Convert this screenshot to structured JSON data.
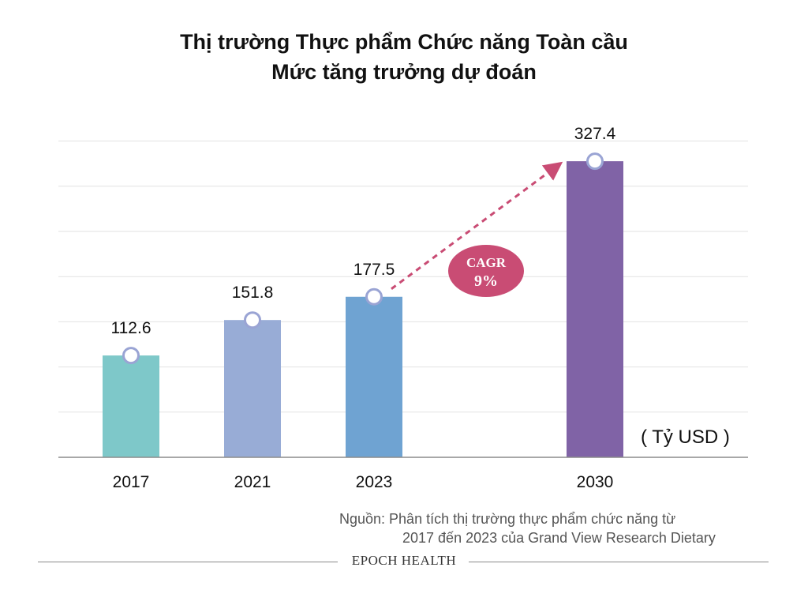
{
  "chart_data": {
    "type": "bar",
    "title_line1": "Thị trường Thực phẩm Chức năng Toàn cầu",
    "title_line2": "Mức tăng trưởng dự đoán",
    "categories": [
      "2017",
      "2021",
      "2023",
      "2030"
    ],
    "values": [
      112.6,
      151.8,
      177.5,
      327.4
    ],
    "value_labels": [
      "112.6",
      "151.8",
      "177.5",
      "327.4"
    ],
    "bar_colors": [
      "#7ec8c9",
      "#98acd6",
      "#6fa3d2",
      "#8063a6"
    ],
    "unit_label": "( Tỷ USD )",
    "ylim": [
      0,
      350
    ],
    "grid": true,
    "annotation": {
      "text_line1": "CAGR",
      "text_line2": "9%",
      "color": "#c94c74",
      "from": "2023",
      "to": "2030"
    }
  },
  "source": {
    "line1": "Nguồn: Phân tích thị trường thực phẩm chức năng từ",
    "line2": "2017 đến 2023 của Grand View Research Dietary"
  },
  "footer": {
    "brand": "EPOCH HEALTH"
  }
}
